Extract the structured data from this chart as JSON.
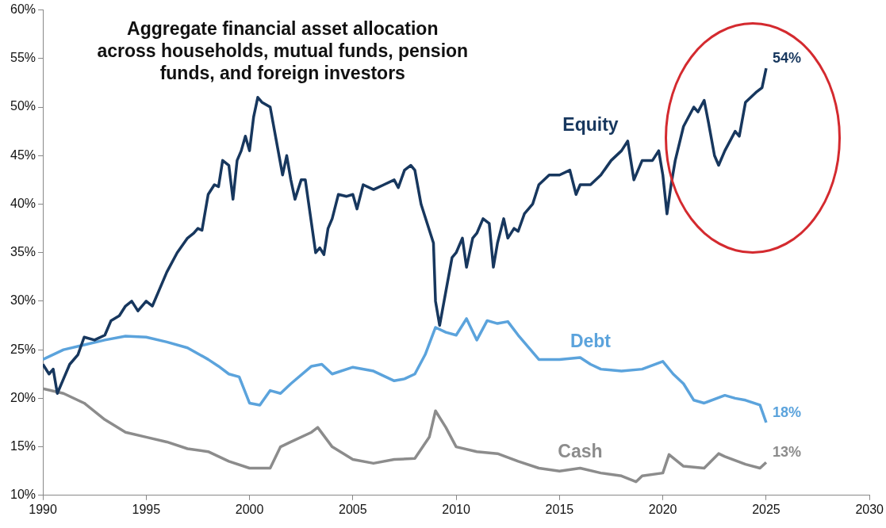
{
  "chart_data": {
    "type": "line",
    "title": "Aggregate financial asset allocation across households, mutual funds, pension funds, and foreign investors",
    "xlim": [
      1990,
      2030
    ],
    "xticks": [
      1990,
      1995,
      2000,
      2005,
      2010,
      2015,
      2020,
      2025,
      2030
    ],
    "ylim": [
      10,
      60
    ],
    "yticks": [
      {
        "value": 10,
        "label": "10%"
      },
      {
        "value": 15,
        "label": "15%"
      },
      {
        "value": 20,
        "label": "20%"
      },
      {
        "value": 25,
        "label": "25%"
      },
      {
        "value": 30,
        "label": "30%"
      },
      {
        "value": 35,
        "label": "35%"
      },
      {
        "value": 40,
        "label": "40%"
      },
      {
        "value": 45,
        "label": "45%"
      },
      {
        "value": 50,
        "label": "50%"
      },
      {
        "value": 55,
        "label": "55%"
      },
      {
        "value": 60,
        "label": "60%"
      }
    ],
    "grid": false,
    "legend": false,
    "marker": "none",
    "line_style": "solid",
    "series": [
      {
        "name": "Equity",
        "color": "#17375e",
        "x": [
          1990,
          1990.3,
          1990.5,
          1990.7,
          1991,
          1991.3,
          1991.7,
          1992,
          1992.5,
          1993,
          1993.3,
          1993.7,
          1994,
          1994.3,
          1994.6,
          1995,
          1995.3,
          1995.6,
          1996,
          1996.5,
          1997,
          1997.3,
          1997.5,
          1997.7,
          1998,
          1998.3,
          1998.5,
          1998.7,
          1999,
          1999.2,
          1999.4,
          1999.6,
          1999.8,
          2000,
          2000.2,
          2000.4,
          2000.6,
          2001,
          2001.3,
          2001.6,
          2001.8,
          2002,
          2002.2,
          2002.5,
          2002.7,
          2003,
          2003.2,
          2003.4,
          2003.6,
          2003.8,
          2004,
          2004.3,
          2004.7,
          2005,
          2005.2,
          2005.5,
          2006,
          2006.5,
          2007,
          2007.2,
          2007.5,
          2007.8,
          2008,
          2008.3,
          2008.6,
          2008.9,
          2009,
          2009.2,
          2009.5,
          2009.8,
          2010,
          2010.3,
          2010.5,
          2010.8,
          2011,
          2011.3,
          2011.6,
          2011.8,
          2012,
          2012.3,
          2012.5,
          2012.8,
          2013,
          2013.3,
          2013.7,
          2014,
          2014.5,
          2015,
          2015.5,
          2015.8,
          2016,
          2016.5,
          2017,
          2017.5,
          2018,
          2018.3,
          2018.6,
          2019,
          2019.5,
          2019.8,
          2020,
          2020.2,
          2020.4,
          2020.6,
          2021,
          2021.5,
          2021.7,
          2022,
          2022.2,
          2022.5,
          2022.7,
          2023,
          2023.5,
          2023.7,
          2024,
          2024.5,
          2024.8,
          2025
        ],
        "value_labels": [
          null,
          null,
          null,
          null,
          null,
          null,
          null,
          null,
          null,
          null,
          null,
          null,
          null,
          null,
          null,
          null,
          null,
          null,
          null,
          null,
          null,
          null,
          null,
          null,
          null,
          null,
          null,
          null,
          null,
          null,
          null,
          null,
          null,
          null,
          null,
          null,
          null,
          null,
          null,
          null,
          null,
          null,
          null,
          null,
          null,
          null,
          null,
          null,
          null,
          null,
          null,
          null,
          null,
          null,
          null,
          null,
          null,
          null,
          null,
          null,
          null,
          null,
          null,
          null,
          null,
          null,
          null,
          null,
          null,
          null,
          null,
          null,
          null,
          null,
          null,
          null,
          null,
          null,
          null,
          null,
          null,
          null,
          null,
          null,
          null,
          null,
          null,
          null,
          null,
          null,
          null,
          null,
          null,
          null,
          null,
          null,
          null,
          null,
          null,
          null,
          null,
          null,
          null,
          null,
          null,
          null,
          null,
          null,
          null,
          null,
          null,
          null,
          null,
          null,
          null,
          null,
          null,
          "54%"
        ],
        "values": [
          23.5,
          22.5,
          23,
          20.5,
          22,
          23.5,
          24.5,
          26.3,
          26,
          26.5,
          28,
          28.5,
          29.5,
          30,
          29,
          30,
          29.5,
          31,
          33,
          35,
          36.5,
          37,
          37.5,
          37.3,
          41,
          42,
          41.8,
          44.5,
          44,
          40.5,
          44.5,
          45.5,
          47,
          45.5,
          49,
          51,
          50.5,
          50,
          46.5,
          43,
          45,
          42.5,
          40.5,
          42.5,
          42.5,
          38,
          35,
          35.5,
          34.8,
          37.5,
          38.5,
          41,
          40.8,
          41,
          39.5,
          42,
          41.5,
          42,
          42.5,
          41.7,
          43.5,
          44,
          43.5,
          40,
          38,
          36,
          30,
          27.5,
          31,
          34.5,
          35,
          36.5,
          33.5,
          36.5,
          37,
          38.5,
          38,
          33.5,
          36,
          38.5,
          36.5,
          37.5,
          37.2,
          39,
          40,
          42,
          43,
          43,
          43.5,
          41,
          42,
          42,
          43,
          44.5,
          45.5,
          46.5,
          42.5,
          44.5,
          44.5,
          45.5,
          43,
          39,
          42,
          44.5,
          48,
          50,
          49.5,
          50.7,
          48.5,
          45,
          44,
          45.5,
          47.5,
          47,
          50.5,
          51.5,
          52,
          54
        ]
      },
      {
        "name": "Debt",
        "color": "#5ba3dc",
        "x": [
          1990,
          1991,
          1992,
          1993,
          1994,
          1995,
          1996,
          1997,
          1998,
          1998.5,
          1999,
          1999.5,
          2000,
          2000.5,
          2001,
          2001.5,
          2002,
          2003,
          2003.5,
          2004,
          2005,
          2006,
          2007,
          2007.5,
          2008,
          2008.5,
          2009,
          2009.5,
          2010,
          2010.5,
          2011,
          2011.5,
          2012,
          2012.5,
          2013,
          2014,
          2015,
          2016,
          2016.5,
          2017,
          2018,
          2019,
          2020,
          2020.5,
          2021,
          2021.5,
          2022,
          2023,
          2023.5,
          2024,
          2024.7,
          2025
        ],
        "value_labels": [
          null,
          null,
          null,
          null,
          null,
          null,
          null,
          null,
          null,
          null,
          null,
          null,
          null,
          null,
          null,
          null,
          null,
          null,
          null,
          null,
          null,
          null,
          null,
          null,
          null,
          null,
          null,
          null,
          null,
          null,
          null,
          null,
          null,
          null,
          null,
          null,
          null,
          null,
          null,
          null,
          null,
          null,
          null,
          null,
          null,
          null,
          null,
          null,
          null,
          null,
          null,
          "18%"
        ],
        "values": [
          24,
          25,
          25.5,
          26,
          26.4,
          26.3,
          25.8,
          25.2,
          24,
          23.3,
          22.5,
          22.2,
          19.5,
          19.3,
          20.8,
          20.5,
          21.5,
          23.3,
          23.5,
          22.5,
          23.2,
          22.8,
          21.8,
          22,
          22.5,
          24.5,
          27.3,
          26.8,
          26.5,
          28.2,
          26,
          28,
          27.7,
          27.9,
          26.5,
          24,
          24,
          24.2,
          23.5,
          23,
          22.8,
          23,
          23.8,
          22.5,
          21.5,
          19.8,
          19.5,
          20.3,
          20,
          19.8,
          19.3,
          17.5
        ]
      },
      {
        "name": "Cash",
        "color": "#8c8c8c",
        "x": [
          1990,
          1991,
          1992,
          1993,
          1994,
          1995,
          1996,
          1997,
          1998,
          1999,
          2000,
          2001,
          2001.5,
          2002,
          2003,
          2003.3,
          2004,
          2005,
          2006,
          2007,
          2008,
          2008.7,
          2009,
          2009.5,
          2010,
          2011,
          2012,
          2013,
          2014,
          2015,
          2016,
          2017,
          2018,
          2018.7,
          2019,
          2020,
          2020.3,
          2021,
          2022,
          2022.7,
          2023,
          2024,
          2024.7,
          2025
        ],
        "value_labels": [
          null,
          null,
          null,
          null,
          null,
          null,
          null,
          null,
          null,
          null,
          null,
          null,
          null,
          null,
          null,
          null,
          null,
          null,
          null,
          null,
          null,
          null,
          null,
          null,
          null,
          null,
          null,
          null,
          null,
          null,
          null,
          null,
          null,
          null,
          null,
          null,
          null,
          null,
          null,
          null,
          null,
          null,
          null,
          "13%"
        ],
        "values": [
          21,
          20.5,
          19.5,
          17.8,
          16.5,
          16,
          15.5,
          14.8,
          14.5,
          13.5,
          12.8,
          12.8,
          15,
          15.5,
          16.5,
          17,
          15,
          13.7,
          13.3,
          13.7,
          13.8,
          16,
          18.7,
          17,
          15,
          14.5,
          14.3,
          13.5,
          12.8,
          12.5,
          12.8,
          12.3,
          12,
          11.4,
          12,
          12.3,
          14.2,
          13,
          12.8,
          14.3,
          14,
          13.2,
          12.8,
          13.4
        ]
      }
    ]
  }
}
